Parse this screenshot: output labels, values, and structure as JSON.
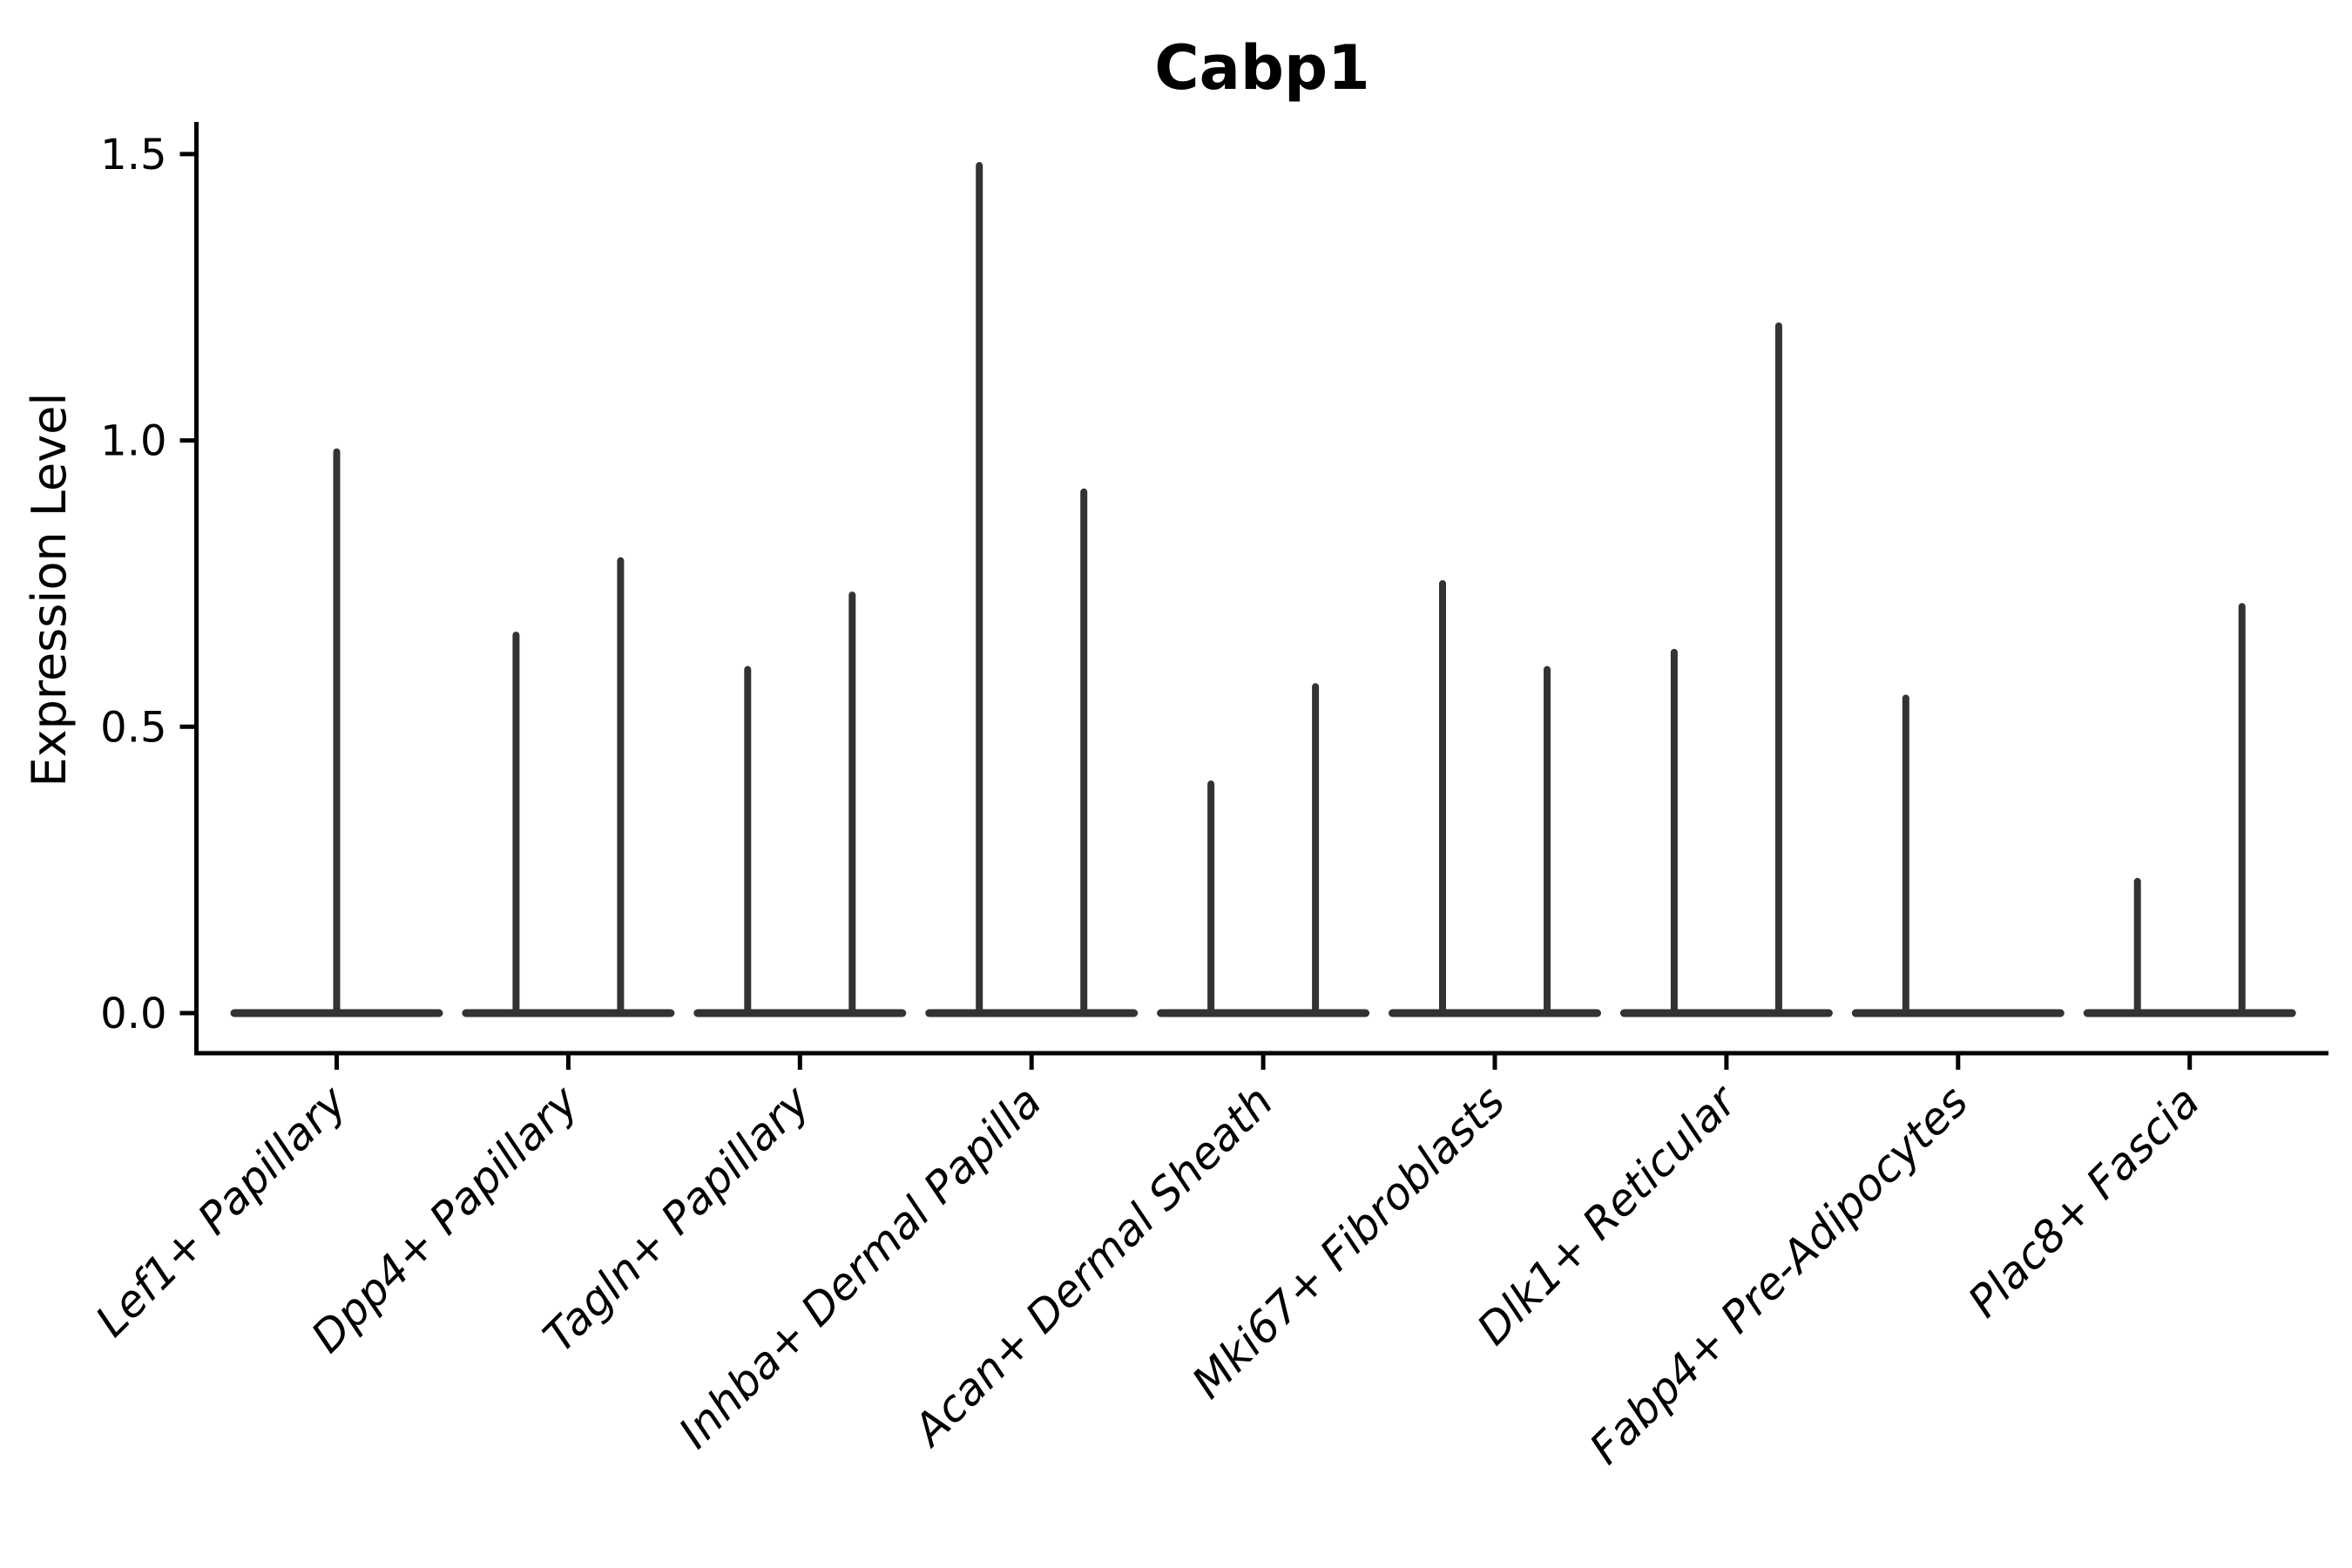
{
  "chart_data": {
    "type": "violin",
    "title": "Cabp1",
    "ylabel": "Expression Level",
    "xlabel": "",
    "yticks": [
      0,
      0.5,
      1,
      1.5
    ],
    "ylim": [
      0,
      1.56
    ],
    "grid": false,
    "legend": null,
    "categories": [
      "Lef1+ Papillary",
      "Dpp4+ Papillary",
      "Tagln+ Papillary",
      "Inhba+ Dermal Papilla",
      "Acan+ Dermal Sheath",
      "Mki67+ Fibroblasts",
      "Dlk1+ Reticular",
      "Fabp4+ Pre-Adipocytes",
      "Plac8+ Fascia"
    ],
    "violin_maxima": [
      [
        0.98
      ],
      [
        0.66,
        0.79
      ],
      [
        0.6,
        0.73
      ],
      [
        1.48,
        0.91
      ],
      [
        0.4,
        0.57
      ],
      [
        0.75,
        0.6
      ],
      [
        0.63,
        1.2
      ],
      [
        0.55,
        0.0
      ],
      [
        0.23,
        0.71
      ]
    ],
    "colors": {
      "violin": "#333333",
      "axis": "#000000",
      "text": "#000000",
      "background": "#ffffff"
    }
  }
}
